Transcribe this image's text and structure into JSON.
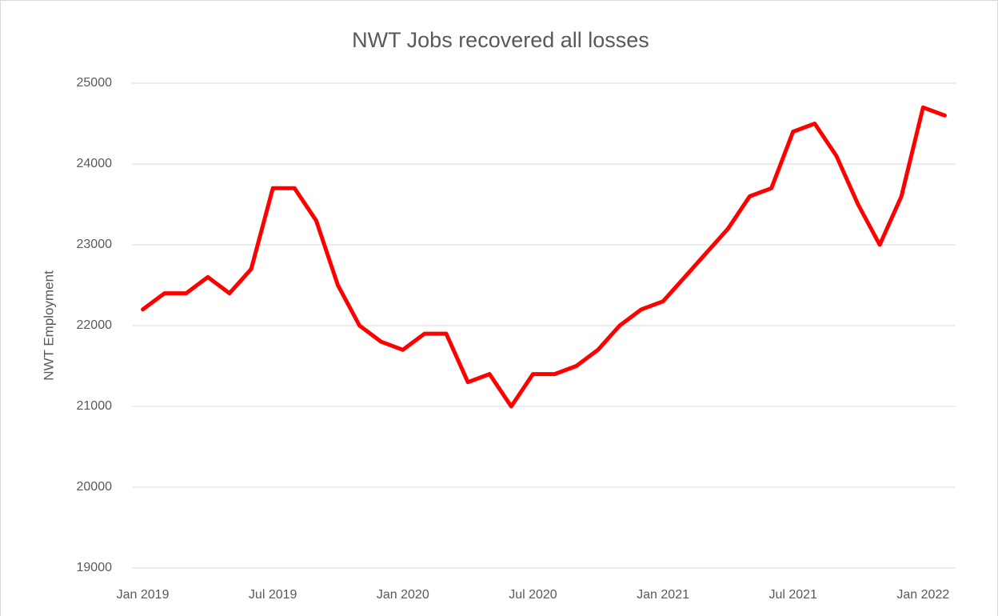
{
  "chart_data": {
    "type": "line",
    "title": "NWT Jobs  recovered all losses",
    "y_label": "NWT Employment",
    "categories": [
      "Jan 2019",
      null,
      null,
      null,
      null,
      null,
      "Jul 2019",
      null,
      null,
      null,
      null,
      null,
      "Jan 2020",
      null,
      null,
      null,
      null,
      null,
      "Jul 2020",
      null,
      null,
      null,
      null,
      null,
      "Jan 2021",
      null,
      null,
      null,
      null,
      null,
      "Jul 2021",
      null,
      null,
      null,
      null,
      null,
      "Jan 2022",
      null
    ],
    "series": [
      {
        "name": "NWT Employment",
        "color": "#ff0000",
        "values": [
          22200,
          22400,
          22400,
          22600,
          22400,
          22700,
          23700,
          23700,
          23300,
          22500,
          22000,
          21800,
          21700,
          21900,
          21900,
          21300,
          21400,
          21000,
          21400,
          21400,
          21500,
          21700,
          22000,
          22200,
          22300,
          22600,
          22900,
          23200,
          23600,
          23700,
          24400,
          24500,
          24100,
          23500,
          23000,
          23600,
          24700,
          24600
        ]
      }
    ],
    "ylim": [
      19000,
      25000
    ],
    "yticks": [
      19000,
      20000,
      21000,
      22000,
      23000,
      24000,
      25000
    ],
    "grid": true
  }
}
